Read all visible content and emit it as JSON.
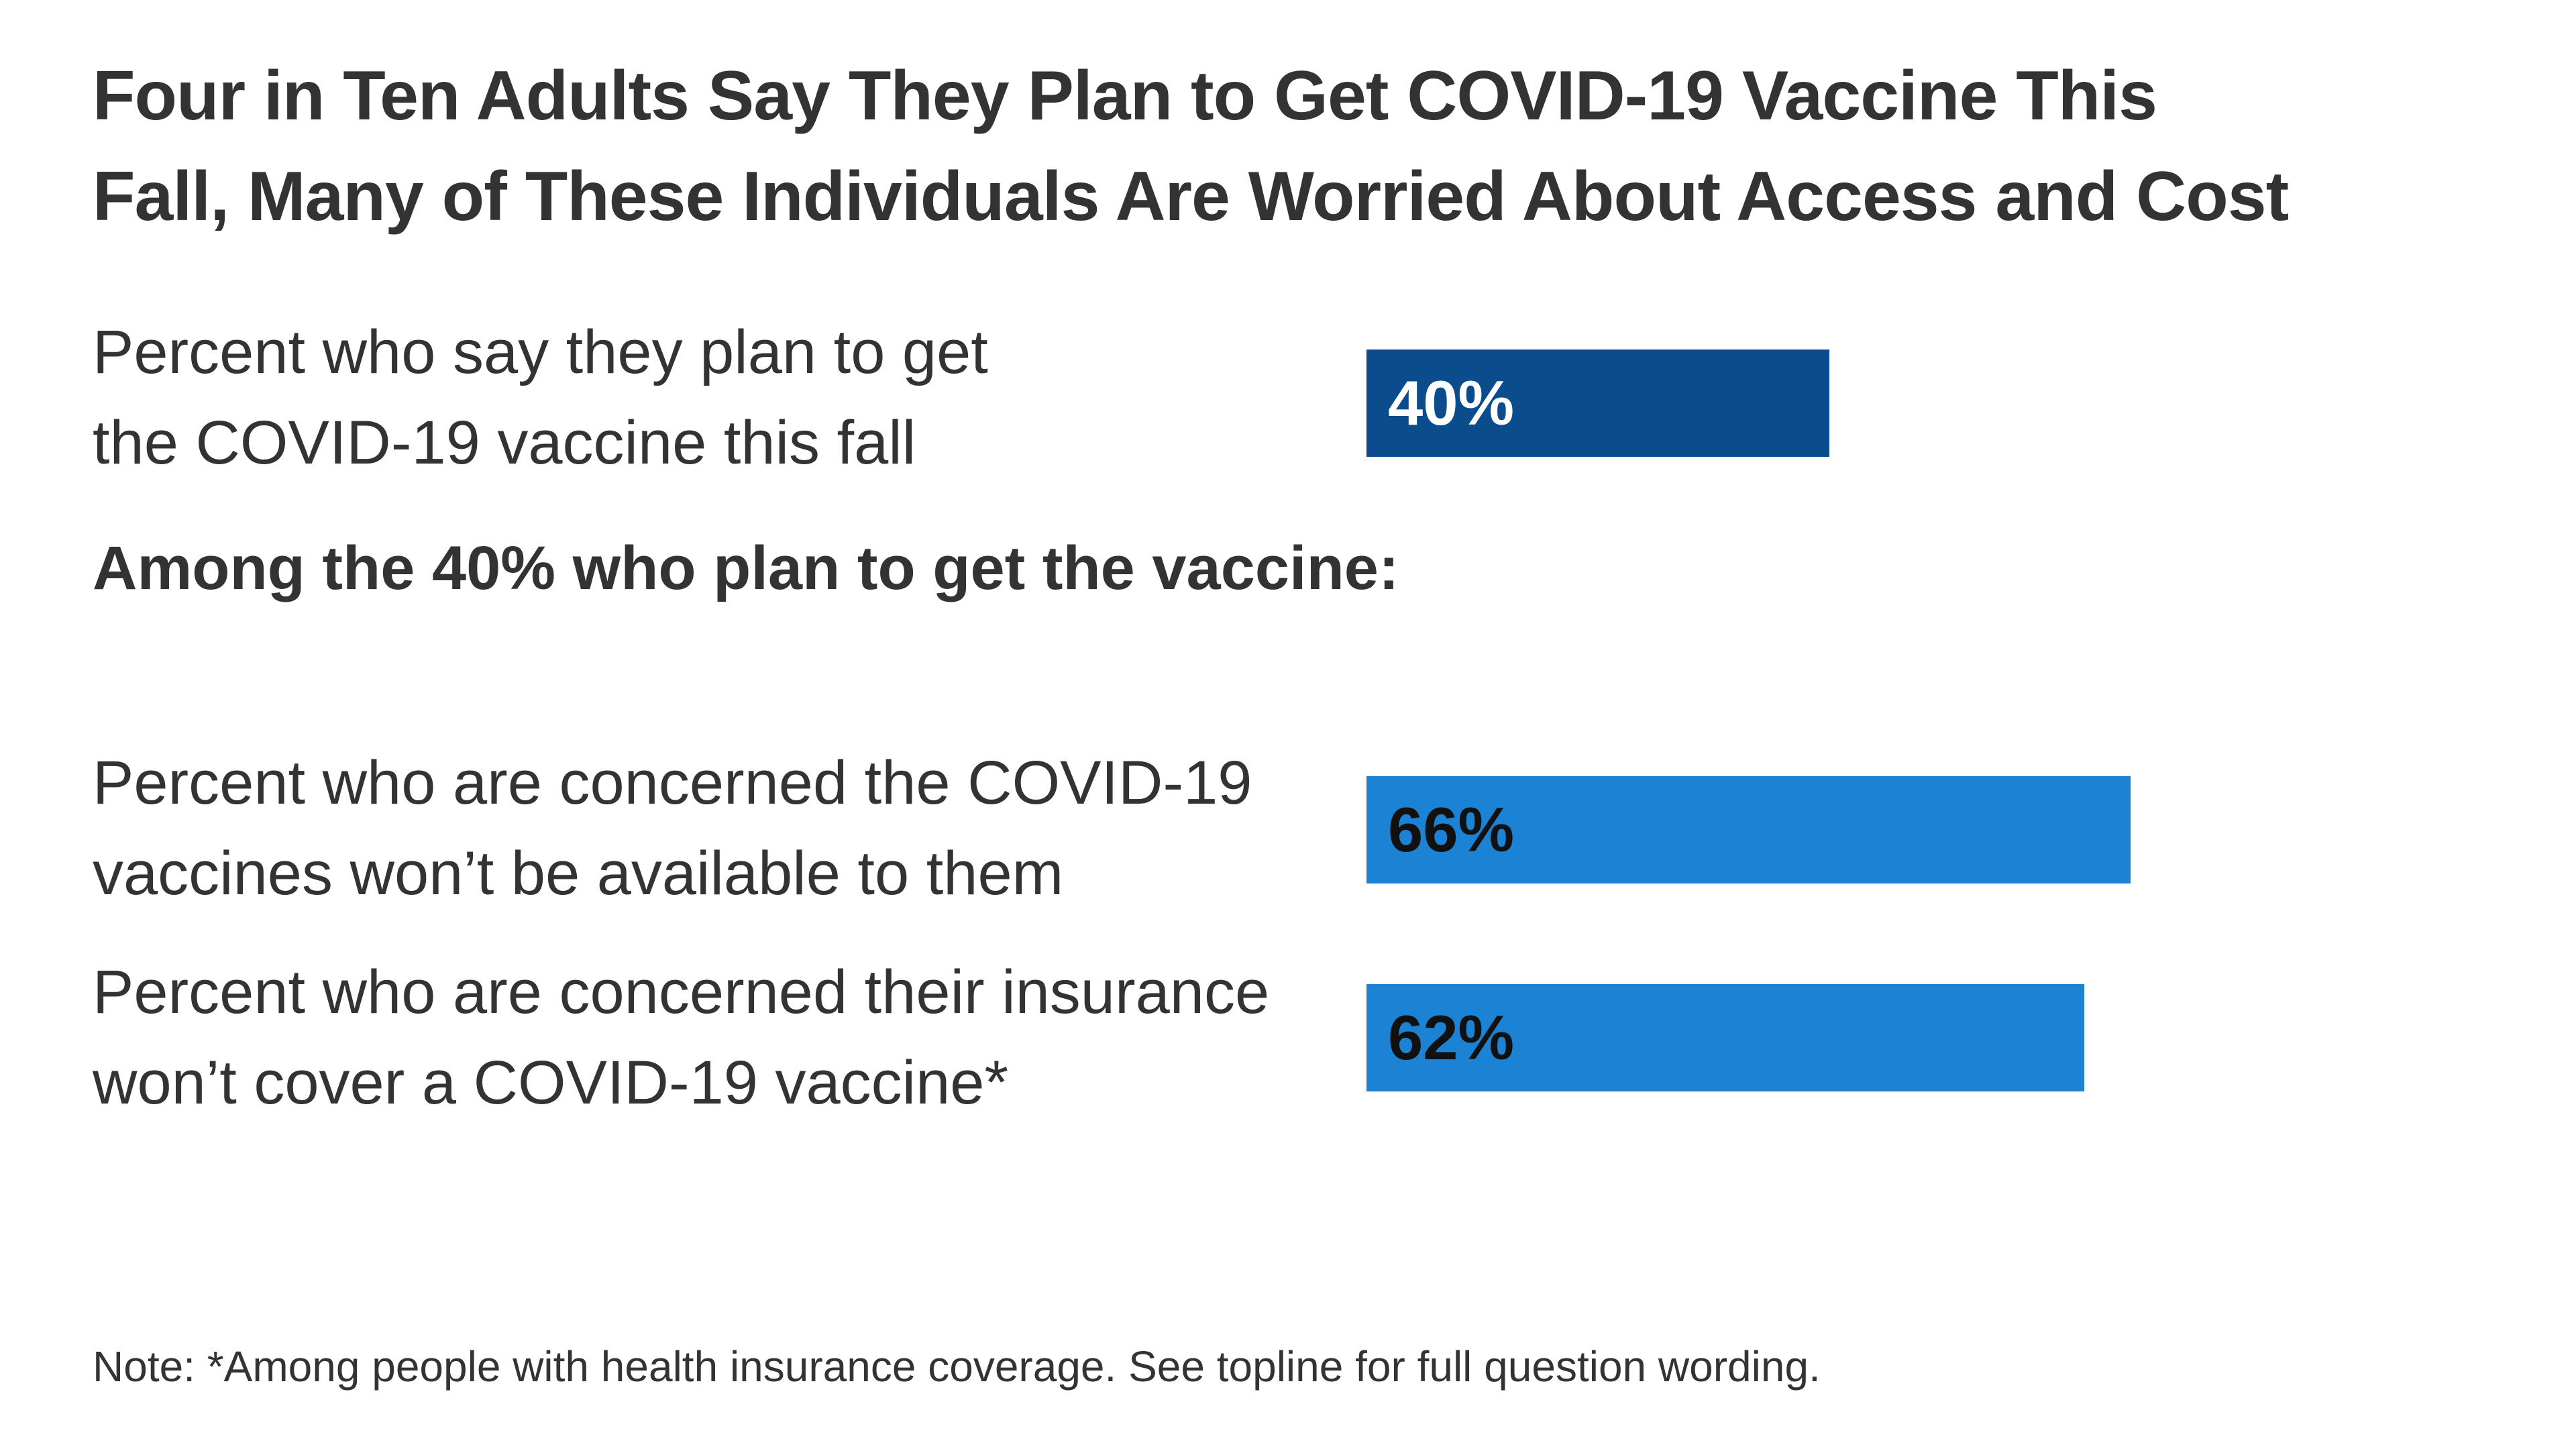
{
  "title_lines": [
    "Four in Ten Adults Say They Plan to Get COVID-19 Vaccine This",
    "Fall, Many of These Individuals Are Worried About Access and Cost"
  ],
  "section_header_lines": [
    "Among the 40% who plan",
    "to get the vaccine:"
  ],
  "rows": [
    {
      "label_lines": [
        "Percent who say they plan to get",
        "the COVID-19 vaccine this fall"
      ],
      "value": 40,
      "value_label": "40%",
      "bar_color": "#0a4c8c",
      "value_label_color": "#ffffff"
    },
    {
      "label_lines": [
        "Percent who are concerned the COVID-19",
        "vaccines won’t be available to them"
      ],
      "value": 66,
      "value_label": "66%",
      "bar_color": "#1c82d4",
      "value_label_color": "#111111"
    },
    {
      "label_lines": [
        "Percent who are concerned their insurance",
        "won’t cover a COVID-19 vaccine*"
      ],
      "value": 62,
      "value_label": "62%",
      "bar_color": "#1c82d4",
      "value_label_color": "#111111"
    }
  ],
  "note": "Note: *Among people with health insurance coverage. See topline for full question wording.",
  "chart_data": {
    "type": "bar",
    "orientation": "horizontal",
    "title": "Four in Ten Adults Say They Plan to Get COVID-19 Vaccine This Fall, Many of These Individuals Are Worried About Access and Cost",
    "categories": [
      "Percent who say they plan to get the COVID-19 vaccine this fall",
      "Percent who are concerned the COVID-19 vaccines won’t be available to them",
      "Percent who are concerned their insurance won’t cover a COVID-19 vaccine*"
    ],
    "values": [
      40,
      66,
      62
    ],
    "data_labels": [
      "40%",
      "66%",
      "62%"
    ],
    "colors": [
      "#0a4c8c",
      "#1c82d4",
      "#1c82d4"
    ],
    "annotation": "Among the 40% who plan to get the vaccine: (applies to bars 2 and 3)",
    "xlim": [
      0,
      100
    ],
    "grid": false,
    "legend": false,
    "axes_visible": false,
    "note": "Note: *Among people with health insurance coverage. See topline for full question wording.",
    "text_color": "#333333",
    "background_color": "#ffffff"
  }
}
